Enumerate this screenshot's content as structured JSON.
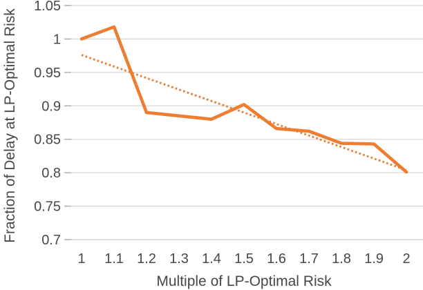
{
  "chart_data": {
    "type": "line",
    "title": "",
    "xlabel": "Multiple of LP-Optimal Risk",
    "ylabel": "Fraction of Delay at LP-Optimal Risk",
    "x": [
      1,
      1.1,
      1.2,
      1.3,
      1.4,
      1.5,
      1.6,
      1.7,
      1.8,
      1.9,
      2
    ],
    "x_tick_labels": [
      "1",
      "1.1",
      "1.2",
      "1.3",
      "1.4",
      "1.5",
      "1.6",
      "1.7",
      "1.8",
      "1.9",
      "2"
    ],
    "y_tick_labels": [
      "1.05",
      "1",
      "0.95",
      "0.9",
      "0.85",
      "0.8",
      "0.75",
      "0.7"
    ],
    "ylim": [
      0.7,
      1.05
    ],
    "xlim": [
      1,
      2
    ],
    "y_tick_step": 0.05,
    "grid": true,
    "legend": "none",
    "series": [
      {
        "name": "fraction-of-delay",
        "style": "solid",
        "color": "#ED7D31",
        "values": [
          1.0,
          1.018,
          0.89,
          0.885,
          0.88,
          0.902,
          0.866,
          0.862,
          0.844,
          0.843,
          0.801
        ]
      },
      {
        "name": "linear-trendline",
        "style": "dotted",
        "color": "#ED7D31",
        "x": [
          1,
          2
        ],
        "values": [
          0.976,
          0.804
        ]
      }
    ],
    "colors": {
      "accent_orange": "#ED7D31",
      "gridline": "#D9D9D9",
      "axis_line": "#C6C6C6",
      "tick_mark": "#ADADAD",
      "axis_text": "#474747",
      "background": "#FFFFFF"
    }
  }
}
